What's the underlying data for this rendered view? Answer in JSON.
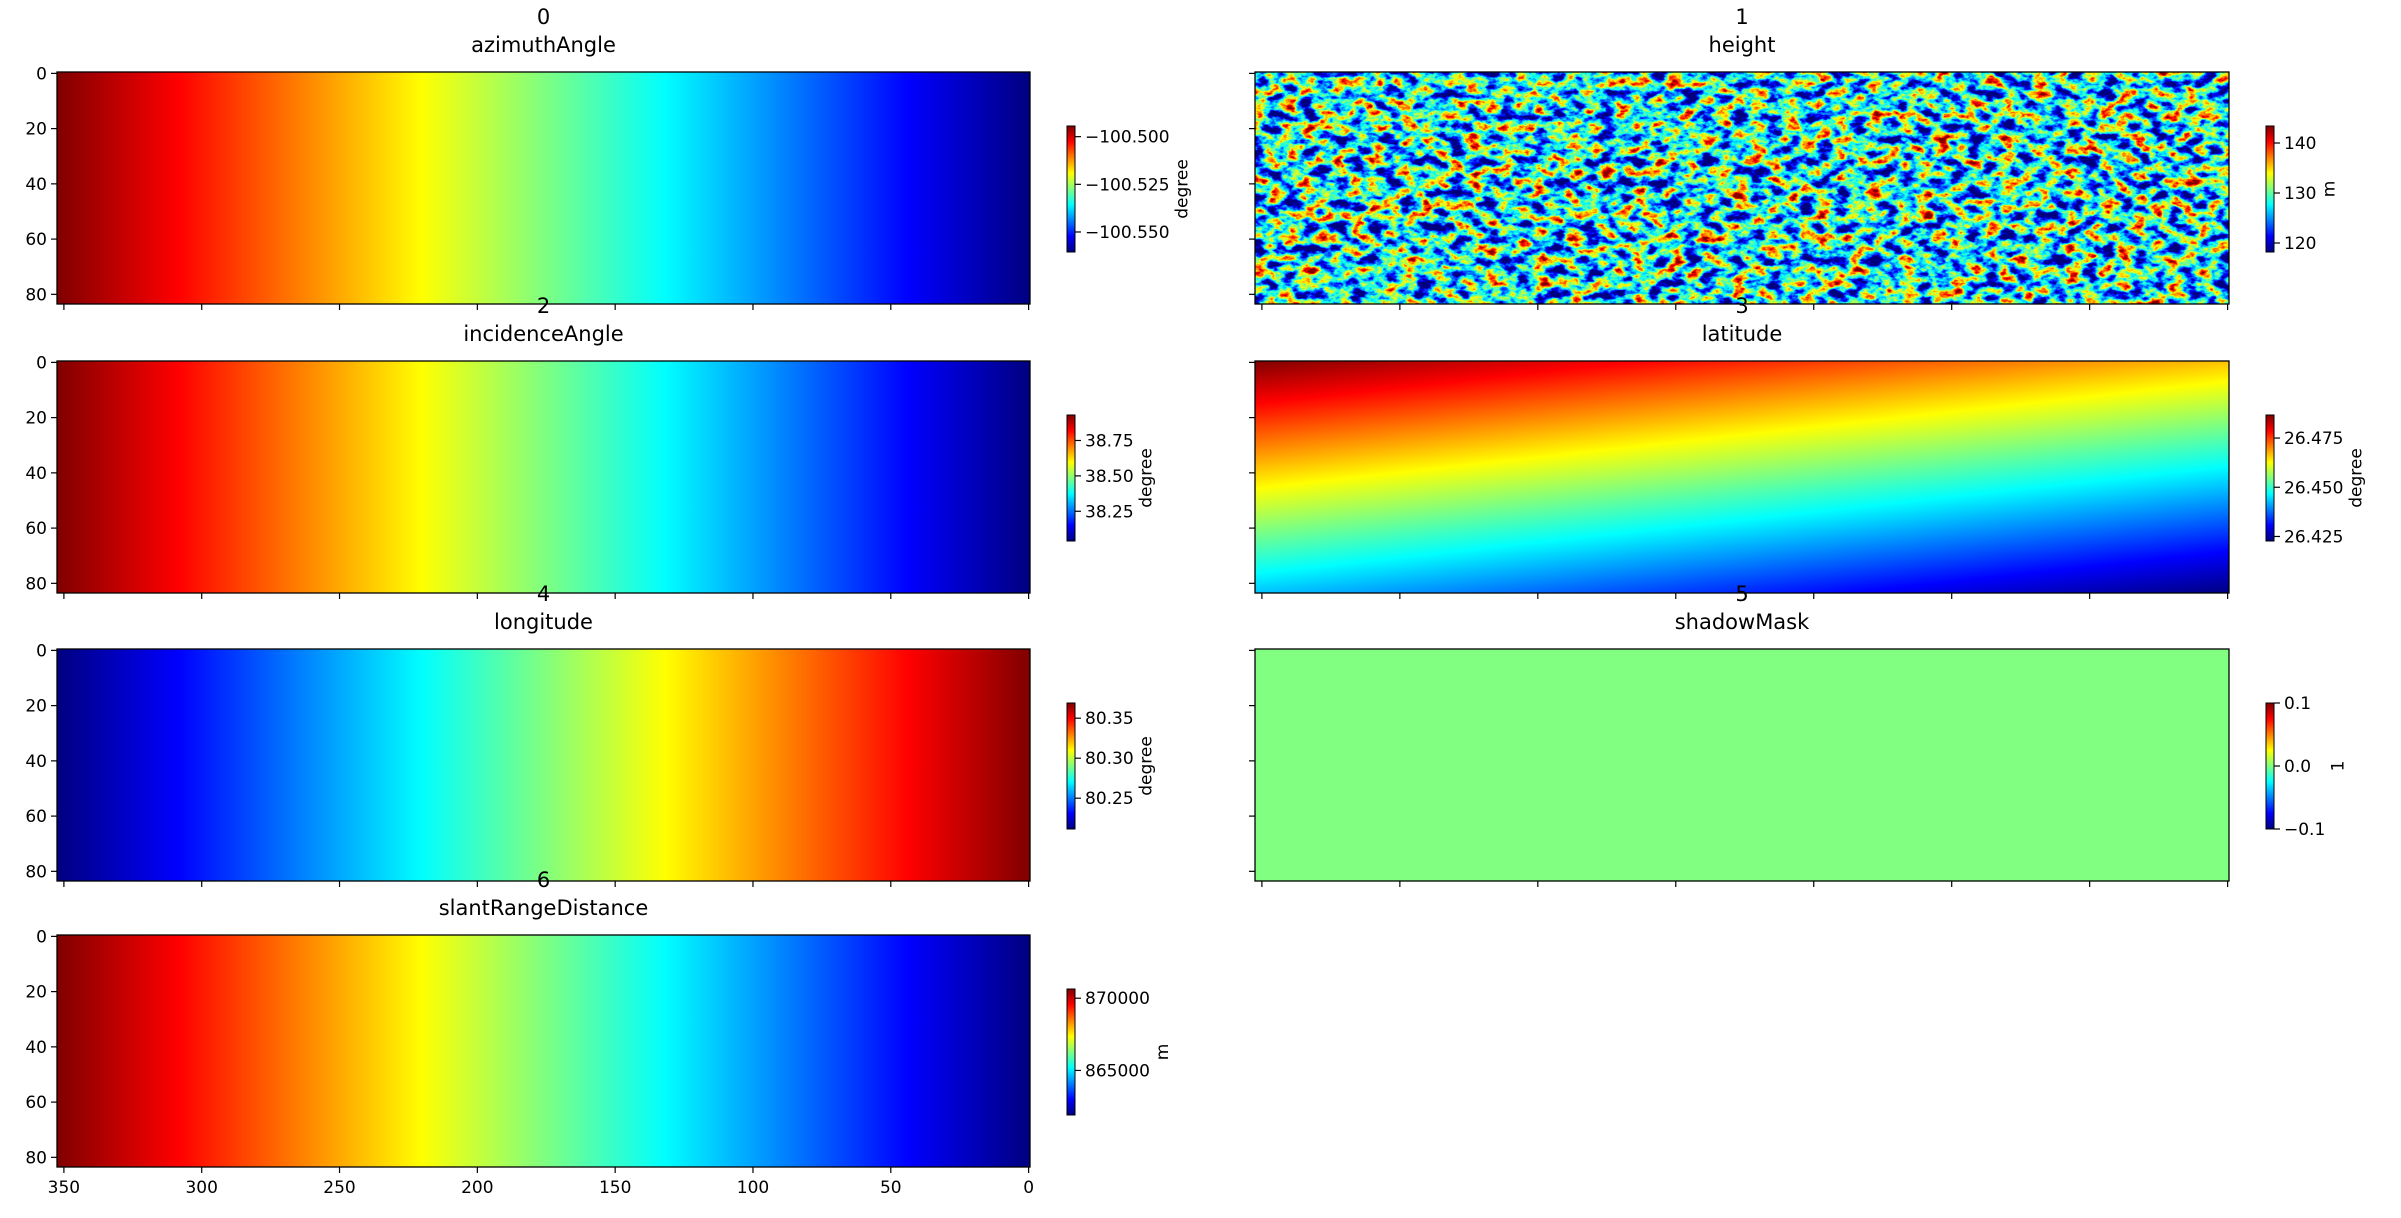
{
  "chart_data": [
    {
      "type": "heatmap",
      "title": "0",
      "subtitle": "azimuthAngle",
      "colormap": "jet",
      "xlim": [
        352.5,
        -0.5
      ],
      "ylim": [
        83.5,
        -0.5
      ],
      "xticks": [
        350,
        300,
        250,
        200,
        150,
        100,
        50,
        0
      ],
      "yticks": [
        0,
        20,
        40,
        60,
        80
      ],
      "xtick_labels": false,
      "ytick_labels": true,
      "colorbar": {
        "label": "degree",
        "lim": [
          -100.5605,
          -100.4944
        ],
        "ticks": [
          {
            "value": -100.5,
            "label": "−100.500"
          },
          {
            "value": -100.525,
            "label": "−100.525"
          },
          {
            "value": -100.55,
            "label": "−100.550"
          }
        ]
      }
    },
    {
      "type": "heatmap",
      "title": "1",
      "subtitle": "height",
      "colormap": "jet",
      "xlim": [
        352.5,
        -0.5
      ],
      "ylim": [
        83.5,
        -0.5
      ],
      "xticks": [
        350,
        300,
        250,
        200,
        150,
        100,
        50,
        0
      ],
      "yticks": [
        0,
        20,
        40,
        60,
        80
      ],
      "xtick_labels": false,
      "ytick_labels": false,
      "colorbar": {
        "label": "m",
        "lim": [
          118.2,
          143.4
        ],
        "ticks": [
          120,
          130,
          140
        ]
      }
    },
    {
      "type": "heatmap",
      "title": "2",
      "subtitle": "incidenceAngle",
      "colormap": "jet",
      "xlim": [
        352.5,
        -0.5
      ],
      "ylim": [
        83.5,
        -0.5
      ],
      "xticks": [
        350,
        300,
        250,
        200,
        150,
        100,
        50,
        0
      ],
      "yticks": [
        0,
        20,
        40,
        60,
        80
      ],
      "xtick_labels": false,
      "ytick_labels": true,
      "colorbar": {
        "label": "degree",
        "lim": [
          38.04,
          38.93
        ],
        "ticks": [
          38.25,
          {
            "value": 38.5,
            "label": "38.50"
          },
          38.75
        ]
      }
    },
    {
      "type": "heatmap",
      "title": "3",
      "subtitle": "latitude",
      "colormap": "jet",
      "xlim": [
        352.5,
        -0.5
      ],
      "ylim": [
        83.5,
        -0.5
      ],
      "xticks": [
        350,
        300,
        250,
        200,
        150,
        100,
        50,
        0
      ],
      "yticks": [
        0,
        20,
        40,
        60,
        80
      ],
      "xtick_labels": false,
      "ytick_labels": false,
      "colorbar": {
        "label": "degree",
        "lim": [
          26.4227,
          26.4867
        ],
        "ticks": [
          26.425,
          {
            "value": 26.45,
            "label": "26.450"
          },
          26.475
        ]
      }
    },
    {
      "type": "heatmap",
      "title": "4",
      "subtitle": "longitude",
      "colormap": "jet",
      "xlim": [
        352.5,
        -0.5
      ],
      "ylim": [
        83.5,
        -0.5
      ],
      "xticks": [
        350,
        300,
        250,
        200,
        150,
        100,
        50,
        0
      ],
      "yticks": [
        0,
        20,
        40,
        60,
        80
      ],
      "xtick_labels": false,
      "ytick_labels": true,
      "colorbar": {
        "label": "degree",
        "lim": [
          80.2115,
          80.369
        ],
        "ticks": [
          80.25,
          {
            "value": 80.3,
            "label": "80.30"
          },
          80.35
        ]
      }
    },
    {
      "type": "heatmap",
      "title": "5",
      "subtitle": "shadowMask",
      "colormap": "jet",
      "xlim": [
        352.5,
        -0.5
      ],
      "ylim": [
        83.5,
        -0.5
      ],
      "xticks": [
        350,
        300,
        250,
        200,
        150,
        100,
        50,
        0
      ],
      "yticks": [
        0,
        20,
        40,
        60,
        80
      ],
      "xtick_labels": false,
      "ytick_labels": false,
      "colorbar": {
        "label": "1",
        "lim": [
          -0.1,
          0.1
        ],
        "ticks": [
          {
            "value": -0.1,
            "label": "−0.1"
          },
          {
            "value": 0,
            "label": "0.0"
          },
          0.1
        ]
      }
    },
    {
      "type": "heatmap",
      "title": "6",
      "subtitle": "slantRangeDistance",
      "colormap": "jet",
      "xlim": [
        352.5,
        -0.5
      ],
      "ylim": [
        83.5,
        -0.5
      ],
      "xticks": [
        350,
        300,
        250,
        200,
        150,
        100,
        50,
        0
      ],
      "yticks": [
        0,
        20,
        40,
        60,
        80
      ],
      "xtick_labels": true,
      "ytick_labels": true,
      "colorbar": {
        "label": "m",
        "lim": [
          861915,
          870638
        ],
        "ticks": [
          865000,
          870000
        ]
      }
    }
  ]
}
